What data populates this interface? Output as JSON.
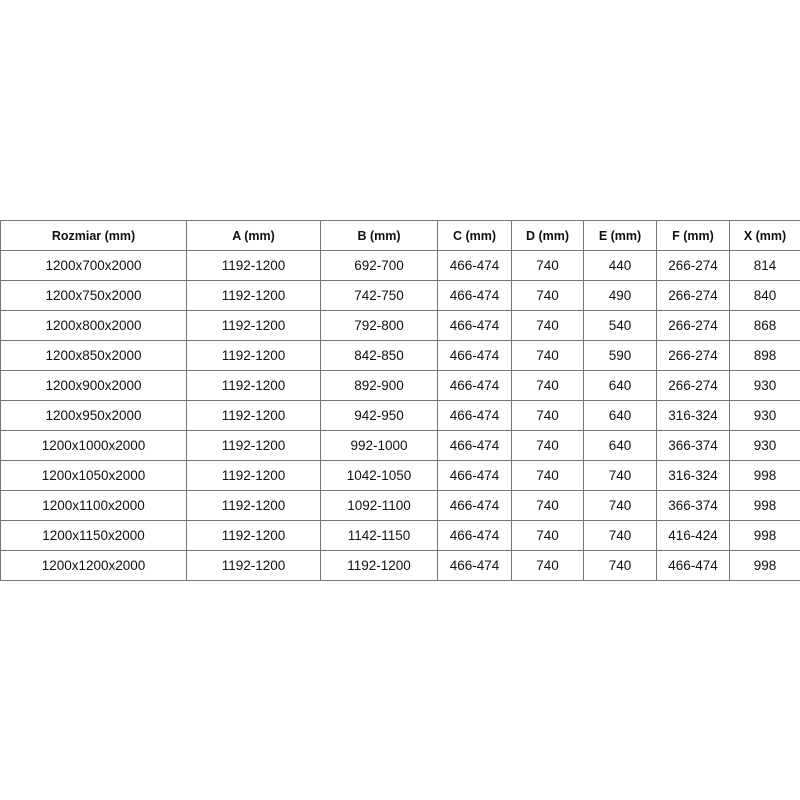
{
  "table": {
    "headers": [
      "Rozmiar (mm)",
      "A (mm)",
      "B (mm)",
      "C (mm)",
      "D (mm)",
      "E (mm)",
      "F (mm)",
      "X (mm)"
    ],
    "rows": [
      [
        "1200x700x2000",
        "1192-1200",
        "692-700",
        "466-474",
        "740",
        "440",
        "266-274",
        "814"
      ],
      [
        "1200x750x2000",
        "1192-1200",
        "742-750",
        "466-474",
        "740",
        "490",
        "266-274",
        "840"
      ],
      [
        "1200x800x2000",
        "1192-1200",
        "792-800",
        "466-474",
        "740",
        "540",
        "266-274",
        "868"
      ],
      [
        "1200x850x2000",
        "1192-1200",
        "842-850",
        "466-474",
        "740",
        "590",
        "266-274",
        "898"
      ],
      [
        "1200x900x2000",
        "1192-1200",
        "892-900",
        "466-474",
        "740",
        "640",
        "266-274",
        "930"
      ],
      [
        "1200x950x2000",
        "1192-1200",
        "942-950",
        "466-474",
        "740",
        "640",
        "316-324",
        "930"
      ],
      [
        "1200x1000x2000",
        "1192-1200",
        "992-1000",
        "466-474",
        "740",
        "640",
        "366-374",
        "930"
      ],
      [
        "1200x1050x2000",
        "1192-1200",
        "1042-1050",
        "466-474",
        "740",
        "740",
        "316-324",
        "998"
      ],
      [
        "1200x1100x2000",
        "1192-1200",
        "1092-1100",
        "466-474",
        "740",
        "740",
        "366-374",
        "998"
      ],
      [
        "1200x1150x2000",
        "1192-1200",
        "1142-1150",
        "466-474",
        "740",
        "740",
        "416-424",
        "998"
      ],
      [
        "1200x1200x2000",
        "1192-1200",
        "1192-1200",
        "466-474",
        "740",
        "740",
        "466-474",
        "998"
      ]
    ]
  }
}
